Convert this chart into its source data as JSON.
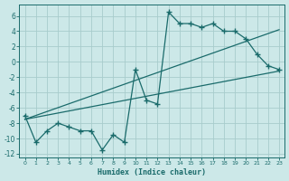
{
  "xlabel": "Humidex (Indice chaleur)",
  "bg_color": "#cce8e8",
  "grid_color": "#a8cccc",
  "line_color": "#1a6b6b",
  "xlim": [
    -0.5,
    23.5
  ],
  "ylim": [
    -12.5,
    7.5
  ],
  "xticks": [
    0,
    1,
    2,
    3,
    4,
    5,
    6,
    7,
    8,
    9,
    10,
    11,
    12,
    13,
    14,
    15,
    16,
    17,
    18,
    19,
    20,
    21,
    22,
    23
  ],
  "yticks": [
    -12,
    -10,
    -8,
    -6,
    -4,
    -2,
    0,
    2,
    4,
    6
  ],
  "series1_x": [
    0,
    1,
    2,
    3,
    4,
    5,
    6,
    7,
    8,
    9,
    10,
    11,
    12,
    13,
    14,
    15,
    16,
    17,
    18,
    19,
    20,
    21,
    22,
    23
  ],
  "series1_y": [
    -7,
    -10.5,
    -9,
    -8,
    -8.5,
    -9,
    -9,
    -11.5,
    -9.5,
    -10.5,
    -1,
    -5,
    -5.5,
    6.5,
    5,
    5,
    4.5,
    5,
    4,
    4,
    3,
    1,
    -0.5,
    -1
  ],
  "line1_x": [
    0,
    23
  ],
  "line1_y": [
    -7.5,
    4.2
  ],
  "line2_x": [
    0,
    23
  ],
  "line2_y": [
    -7.5,
    -1.2
  ],
  "marker": "+",
  "markersize": 4.0,
  "linewidth": 0.9
}
